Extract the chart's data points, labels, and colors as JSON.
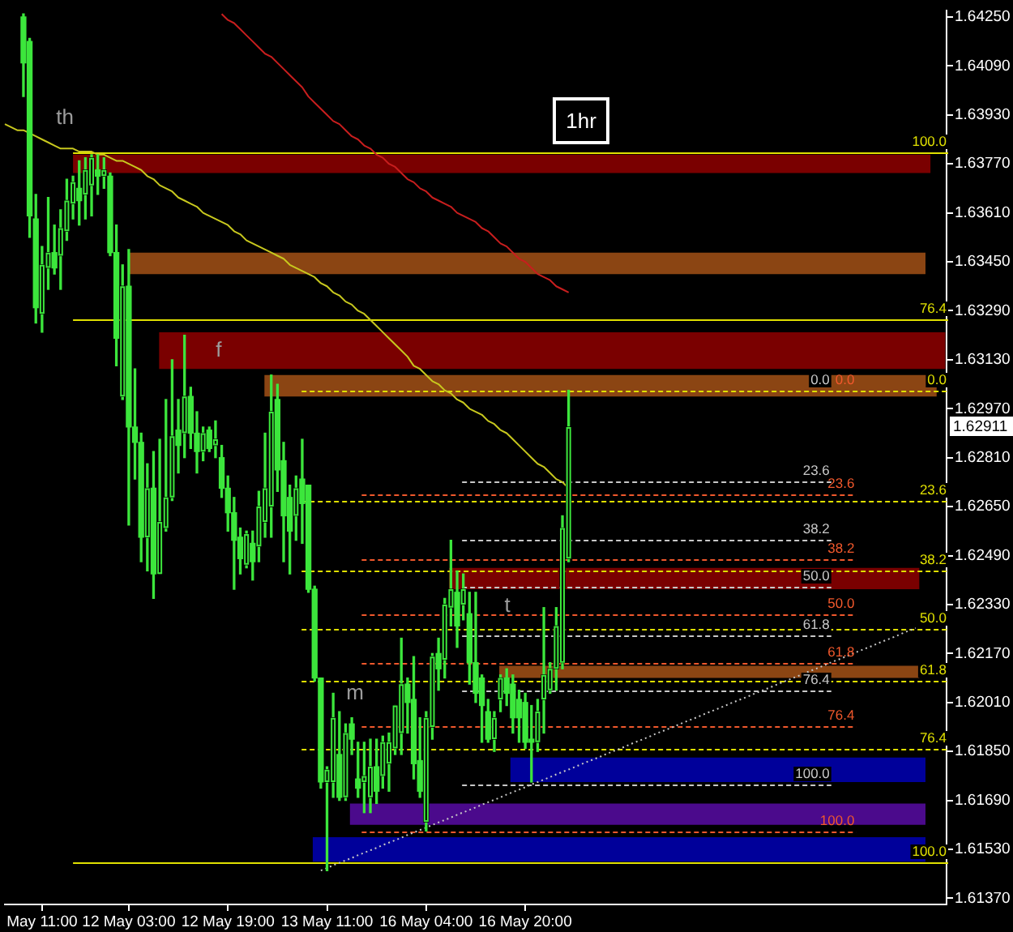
{
  "chart_data": {
    "type": "candlestick",
    "title": "1hr",
    "color": "#3ce63c",
    "categories": [
      null,
      null,
      null,
      null,
      null,
      null,
      "May 11:00",
      null,
      null,
      null,
      null,
      null,
      null,
      null,
      null,
      null,
      null,
      null,
      null,
      null,
      "12 May 03:00",
      null,
      null,
      null,
      null,
      null,
      null,
      null,
      null,
      null,
      null,
      null,
      null,
      null,
      null,
      null,
      "12 May 19:00",
      null,
      null,
      null,
      null,
      null,
      null,
      null,
      null,
      null,
      null,
      null,
      null,
      null,
      null,
      null,
      "13 May 11:00",
      null,
      null,
      null,
      null,
      null,
      null,
      null,
      null,
      null,
      null,
      null,
      null,
      null,
      null,
      null,
      "16 May 04:00",
      null,
      null,
      null,
      null,
      null,
      null,
      null,
      null,
      null,
      null,
      null,
      null,
      null,
      null,
      null,
      "16 May 20:00",
      null,
      null,
      null,
      null,
      null,
      null,
      null,
      null,
      null,
      null,
      null,
      null,
      null,
      null,
      null,
      null,
      null,
      null,
      null,
      null,
      null,
      null,
      null,
      null,
      null,
      null,
      null,
      null,
      null,
      null,
      null,
      null,
      null,
      null,
      null,
      null,
      null,
      null,
      null,
      null,
      null,
      null,
      null,
      null,
      null,
      null,
      null,
      null,
      null,
      null,
      null,
      null,
      null,
      null,
      null,
      null,
      null,
      null,
      null,
      null,
      null,
      null,
      null,
      null,
      null,
      null,
      null,
      null
    ],
    "ohlc": [
      null,
      null,
      null,
      [
        1.6425,
        1.6426,
        1.6399,
        1.641
      ],
      [
        1.6417,
        1.6418,
        1.6353,
        1.636
      ],
      [
        1.6359,
        1.6367,
        1.6325,
        1.633
      ],
      [
        1.6328,
        1.635,
        1.6322,
        1.6344
      ],
      [
        1.6343,
        1.6366,
        1.6336,
        1.6348
      ],
      [
        1.6348,
        1.6357,
        1.6341,
        1.6343
      ],
      [
        1.6347,
        1.6362,
        1.6336,
        1.6356
      ],
      [
        1.6355,
        1.6372,
        1.6352,
        1.6365
      ],
      [
        1.6364,
        1.6373,
        1.6359,
        1.6371
      ],
      [
        1.6369,
        1.6378,
        1.6357,
        1.6365
      ],
      [
        1.6367,
        1.6379,
        1.6359,
        1.6375
      ],
      [
        1.637,
        1.638,
        1.636,
        1.6379
      ],
      [
        1.6375,
        1.638,
        1.6367,
        1.6373
      ],
      [
        1.6373,
        1.6379,
        1.6369,
        1.6375
      ],
      [
        1.6373,
        1.6374,
        1.6347,
        1.6348
      ],
      [
        1.6348,
        1.6357,
        1.6311,
        1.632
      ],
      [
        1.6301,
        1.6344,
        1.63,
        1.6337
      ],
      [
        1.6337,
        1.6349,
        1.6259,
        1.6291
      ],
      [
        1.6291,
        1.631,
        1.6274,
        1.6286
      ],
      [
        1.6286,
        1.6289,
        1.6247,
        1.6255
      ],
      [
        1.6255,
        1.6279,
        1.6244,
        1.6271
      ],
      [
        1.6271,
        1.6283,
        1.6235,
        1.6243
      ],
      [
        1.6243,
        1.6287,
        1.6243,
        1.626
      ],
      [
        1.6258,
        1.63,
        1.6257,
        1.6268
      ],
      [
        1.6268,
        1.6313,
        1.6267,
        1.6288
      ],
      [
        1.629,
        1.63,
        1.6276,
        1.6285
      ],
      [
        1.6289,
        1.6321,
        1.6281,
        1.6301
      ],
      [
        1.6301,
        1.6304,
        1.6284,
        1.6289
      ],
      [
        1.6289,
        1.6296,
        1.6276,
        1.6283
      ],
      [
        1.6283,
        1.6291,
        1.628,
        1.6289
      ],
      [
        1.629,
        1.6291,
        1.6283,
        1.6284
      ],
      [
        1.6285,
        1.6293,
        1.6281,
        1.6287
      ],
      [
        1.6281,
        1.6285,
        1.6268,
        1.6271
      ],
      [
        1.6271,
        1.6275,
        1.6257,
        1.6263
      ],
      [
        1.6263,
        1.6268,
        1.6238,
        1.6254
      ],
      [
        1.6255,
        1.6258,
        1.6243,
        1.6248
      ],
      [
        1.6246,
        1.6257,
        1.6245,
        1.6256
      ],
      [
        1.6253,
        1.6257,
        1.6241,
        1.6247
      ],
      [
        1.6252,
        1.627,
        1.6247,
        1.6265
      ],
      [
        1.626,
        1.6289,
        1.6255,
        1.6271
      ],
      [
        1.6265,
        1.6308,
        1.6255,
        1.6296
      ],
      [
        1.63,
        1.6305,
        1.627,
        1.6277
      ],
      [
        1.628,
        1.6286,
        1.6247,
        1.6262
      ],
      [
        1.6268,
        1.6272,
        1.6243,
        1.6257
      ],
      [
        1.6262,
        1.6275,
        1.6254,
        1.6271
      ],
      [
        1.6274,
        1.6287,
        1.6253,
        1.6266
      ],
      [
        1.6272,
        1.6272,
        1.6237,
        1.6238
      ],
      [
        1.6238,
        1.6239,
        1.6208,
        1.6209
      ],
      [
        1.6209,
        1.6209,
        1.6173,
        1.6175
      ],
      [
        1.6175,
        1.618,
        1.6146,
        1.6179
      ],
      [
        1.6175,
        1.6204,
        1.617,
        1.6196
      ],
      [
        1.6184,
        1.6198,
        1.6169,
        1.617
      ],
      [
        1.617,
        1.6194,
        1.6169,
        1.6191
      ],
      [
        1.6194,
        1.6196,
        1.6184,
        1.6189
      ],
      [
        1.6176,
        1.6188,
        1.617,
        1.6173
      ],
      [
        1.6175,
        1.6188,
        1.6165,
        1.6177
      ],
      [
        1.617,
        1.6189,
        1.6165,
        1.618
      ],
      [
        1.618,
        1.6189,
        1.6168,
        1.6172
      ],
      [
        1.6177,
        1.619,
        1.6173,
        1.6188
      ],
      [
        1.6181,
        1.6191,
        1.6172,
        1.6188
      ],
      [
        1.6186,
        1.62,
        1.6184,
        1.62
      ],
      [
        1.6191,
        1.6222,
        1.6184,
        1.6207
      ],
      [
        1.6207,
        1.6209,
        1.6191,
        1.6201
      ],
      [
        1.6202,
        1.6216,
        1.6176,
        1.6181
      ],
      [
        1.6182,
        1.6196,
        1.617,
        1.6172
      ],
      [
        1.6162,
        1.6198,
        1.6159,
        1.6196
      ],
      [
        1.6193,
        1.6217,
        1.6189,
        1.6216
      ],
      [
        1.6217,
        1.6222,
        1.6205,
        1.6212
      ],
      [
        1.6215,
        1.6235,
        1.6209,
        1.6233
      ],
      [
        1.6232,
        1.6254,
        1.6226,
        1.6238
      ],
      [
        1.6237,
        1.6244,
        1.6219,
        1.6226
      ],
      [
        1.6233,
        1.6243,
        1.6228,
        1.6238
      ],
      [
        1.623,
        1.6237,
        1.6207,
        1.6214
      ],
      [
        1.6214,
        1.6237,
        1.6201,
        1.6204
      ],
      [
        1.6209,
        1.621,
        1.6188,
        1.62
      ],
      [
        1.6198,
        1.6202,
        1.6188,
        1.6189
      ],
      [
        1.6189,
        1.6198,
        1.6185,
        1.6196
      ],
      [
        1.6202,
        1.621,
        1.6198,
        1.6209
      ],
      [
        1.6209,
        1.6212,
        1.62,
        1.6204
      ],
      [
        1.6207,
        1.621,
        1.6191,
        1.6196
      ],
      [
        1.6202,
        1.6205,
        1.6188,
        1.6196
      ],
      [
        1.6201,
        1.6204,
        1.6186,
        1.6188
      ],
      [
        1.6189,
        1.62,
        1.6175,
        1.6188
      ],
      [
        1.6188,
        1.6202,
        1.6185,
        1.6198
      ],
      [
        1.6202,
        1.6232,
        1.6191,
        1.621
      ],
      [
        1.6205,
        1.6214,
        1.6204,
        1.6212
      ],
      [
        1.6212,
        1.6232,
        1.6205,
        1.6226
      ],
      [
        1.6214,
        1.6262,
        1.6212,
        1.6258
      ],
      [
        1.6248,
        1.6303,
        1.6247,
        1.6291
      ],
      null,
      null,
      null,
      null,
      null,
      null,
      null,
      null,
      null,
      null,
      null,
      null,
      null,
      null,
      null,
      null,
      null,
      null,
      null,
      null,
      null,
      null,
      null,
      null,
      null,
      null,
      null,
      null,
      null,
      null,
      null,
      null,
      null,
      null,
      null,
      null,
      null,
      null,
      null,
      null,
      null,
      null,
      null,
      null,
      null,
      null,
      null,
      null,
      null,
      null,
      null,
      null,
      null,
      null,
      null,
      null,
      null,
      null,
      null,
      null,
      null
    ],
    "colors": [
      null,
      null,
      null,
      "#3ce63c",
      "#3ce63c",
      "#3ce63c",
      "#000000",
      "#000000",
      "#3ce63c",
      "#000000",
      "#000000",
      "#000000",
      "#3ce63c",
      "#000000",
      "#000000",
      "#3ce63c",
      "#000000",
      "#3ce63c",
      "#3ce63c",
      "#000000",
      "#3ce63c",
      "#3ce63c",
      "#3ce63c",
      "#000000",
      "#3ce63c",
      "#000000",
      "#000000",
      "#000000",
      "#3ce63c",
      "#000000",
      "#3ce63c",
      "#3ce63c",
      "#000000",
      "#3ce63c",
      "#000000",
      "#3ce63c",
      "#3ce63c",
      "#3ce63c",
      "#3ce63c",
      "#000000",
      "#3ce63c",
      "#000000",
      "#000000",
      "#000000",
      "#3ce63c",
      "#3ce63c",
      "#3ce63c",
      "#000000",
      "#3ce63c",
      "#3ce63c",
      "#3ce63c",
      "#3ce63c",
      "#000000",
      "#000000",
      "#3ce63c",
      "#000000",
      "#3ce63c",
      "#3ce63c",
      "#000000",
      "#000000",
      "#3ce63c",
      "#000000",
      "#000000",
      "#000000",
      "#000000",
      "#3ce63c",
      "#3ce63c",
      "#3ce63c",
      "#000000",
      "#000000",
      "#3ce63c",
      "#000000",
      "#000000",
      "#3ce63c",
      "#000000",
      "#3ce63c",
      "#3ce63c",
      "#3ce63c",
      "#3ce63c",
      "#000000",
      "#000000",
      "#3ce63c",
      "#3ce63c",
      "#3ce63c",
      "#3ce63c",
      "#3ce63c",
      "#000000",
      "#000000",
      "#000000",
      "#000000",
      "#000000",
      "#000000",
      null,
      null,
      null,
      null,
      null,
      null,
      null,
      null,
      null,
      null,
      null,
      null,
      null,
      null,
      null,
      null,
      null,
      null,
      null,
      null,
      null,
      null,
      null,
      null,
      null,
      null,
      null,
      null,
      null,
      null,
      null,
      null,
      null,
      null,
      null,
      null,
      null,
      null,
      null,
      null,
      null,
      null,
      null,
      null,
      null,
      null,
      null,
      null,
      null,
      null,
      null,
      null,
      null,
      null,
      null,
      null,
      null,
      null,
      null,
      null,
      null
    ],
    "series": [
      {
        "type": "line",
        "color": "#c8c81e",
        "values": [
          1.639,
          1.6389,
          1.6388,
          1.6388,
          1.6387,
          1.6386,
          1.6385,
          1.6384,
          1.6383,
          1.6382,
          1.6382,
          1.6382,
          1.6381,
          1.6381,
          1.6381,
          1.638,
          1.638,
          1.6379,
          1.6378,
          1.6378,
          1.6377,
          1.6376,
          1.6375,
          1.6373,
          1.6372,
          1.637,
          1.6369,
          1.6368,
          1.6366,
          1.6365,
          1.6364,
          1.6363,
          1.6361,
          1.636,
          1.6359,
          1.6358,
          1.6357,
          1.6355,
          1.6354,
          1.6352,
          1.6351,
          1.635,
          1.6349,
          1.6348,
          1.6347,
          1.6346,
          1.6344,
          1.6343,
          1.6342,
          1.6341,
          1.634,
          1.6338,
          1.6337,
          1.6335,
          1.6334,
          1.6332,
          1.6331,
          1.6329,
          1.6328,
          1.6326,
          1.6324,
          1.6322,
          1.632,
          1.6318,
          1.6316,
          1.6314,
          1.6311,
          1.631,
          1.6308,
          1.6306,
          1.6305,
          1.6303,
          1.6302,
          1.63,
          1.6299,
          1.6297,
          1.6296,
          1.6295,
          1.6293,
          1.6292,
          1.629,
          1.6289,
          1.6287,
          1.6285,
          1.6283,
          1.6281,
          1.6279,
          1.6278,
          1.6276,
          1.6274,
          1.6273,
          1.6271,
          null,
          null,
          null,
          null,
          null,
          null,
          null,
          null,
          null,
          null,
          null,
          null,
          null,
          null,
          null,
          null,
          null,
          null,
          null,
          null,
          null,
          null,
          null,
          null,
          null,
          null,
          null,
          null,
          null,
          null,
          null,
          null,
          null,
          null,
          null,
          null,
          null,
          null,
          null,
          null,
          null,
          null,
          null,
          null,
          null,
          null,
          null,
          null,
          null,
          null,
          null,
          null,
          null,
          null,
          null,
          null,
          null,
          null,
          null,
          null,
          null
        ]
      },
      {
        "type": "line",
        "color": "#c81e1e",
        "values": [
          null,
          null,
          null,
          null,
          null,
          null,
          null,
          null,
          null,
          null,
          null,
          null,
          null,
          null,
          null,
          null,
          null,
          null,
          null,
          null,
          null,
          null,
          null,
          null,
          null,
          null,
          null,
          null,
          null,
          null,
          null,
          null,
          null,
          null,
          null,
          1.6426,
          1.6424,
          1.6423,
          1.6421,
          1.6419,
          1.6417,
          1.6415,
          1.6413,
          1.6412,
          1.641,
          1.6408,
          1.6406,
          1.6404,
          1.6402,
          1.6399,
          1.6397,
          1.6395,
          1.6393,
          1.6391,
          1.639,
          1.6388,
          1.6386,
          1.6385,
          1.6383,
          1.6382,
          1.638,
          1.6379,
          1.6377,
          1.6376,
          1.6374,
          1.6372,
          1.6371,
          1.6369,
          1.6368,
          1.6366,
          1.6365,
          1.6364,
          1.6363,
          1.6361,
          1.636,
          1.6359,
          1.6358,
          1.6356,
          1.6355,
          1.6353,
          1.6351,
          1.635,
          1.6348,
          1.6346,
          1.6345,
          1.6343,
          1.6341,
          1.634,
          1.6339,
          1.6337,
          1.6336,
          1.6335,
          null,
          null,
          null,
          null,
          null,
          null,
          null,
          null,
          null,
          null,
          null,
          null,
          null,
          null,
          null,
          null,
          null,
          null,
          null,
          null,
          null,
          null,
          null,
          null,
          null,
          null,
          null,
          null,
          null,
          null,
          null,
          null,
          null,
          null,
          null,
          null,
          null,
          null,
          null,
          null,
          null,
          null,
          null,
          null,
          null,
          null,
          null,
          null,
          null,
          null,
          null,
          null,
          null,
          null,
          null,
          null,
          null,
          null,
          null,
          null,
          null
        ]
      },
      {
        "type": "line",
        "color": "#c8c8c8",
        "line_style": "dotted",
        "values": [
          null,
          null,
          null,
          null,
          null,
          null,
          null,
          null,
          null,
          null,
          null,
          null,
          null,
          null,
          null,
          null,
          null,
          null,
          null,
          null,
          null,
          null,
          null,
          null,
          null,
          null,
          null,
          null,
          null,
          null,
          null,
          null,
          null,
          null,
          null,
          null,
          null,
          null,
          null,
          null,
          null,
          null,
          null,
          null,
          null,
          null,
          null,
          null,
          null,
          null,
          null,
          1.61461,
          1.61469,
          1.61478,
          1.61486,
          1.61494,
          1.61502,
          1.61511,
          1.61519,
          1.61527,
          1.61535,
          1.61544,
          1.61552,
          1.6156,
          1.61568,
          1.61577,
          1.61585,
          1.61593,
          1.61601,
          1.6161,
          1.61618,
          1.61626,
          1.61634,
          1.61643,
          1.61651,
          1.61659,
          1.61667,
          1.61676,
          1.61684,
          1.61692,
          1.617,
          1.61709,
          1.61717,
          1.61725,
          1.61733,
          1.61742,
          1.6175,
          1.61758,
          1.61766,
          1.61775,
          1.61783,
          1.61791,
          1.61799,
          1.61808,
          1.61816,
          1.61824,
          1.61832,
          1.61841,
          1.61849,
          1.61857,
          1.61865,
          1.61874,
          1.61882,
          1.6189,
          1.61898,
          1.61907,
          1.61915,
          1.61923,
          1.61931,
          1.6194,
          1.61948,
          1.61956,
          1.61964,
          1.61973,
          1.61981,
          1.61989,
          1.61997,
          1.62006,
          1.62014,
          1.62022,
          1.6203,
          1.62039,
          1.62047,
          1.62055,
          1.62063,
          1.62072,
          1.6208,
          1.62088,
          1.62096,
          1.62105,
          1.62113,
          1.62121,
          1.62129,
          1.62138,
          1.62146,
          1.62154,
          1.62162,
          1.62171,
          1.62179,
          1.62187,
          1.62195,
          1.62204,
          1.62212,
          1.6222,
          1.62228,
          1.62237,
          1.62245,
          1.62253,
          null,
          null,
          null,
          null,
          null
        ]
      }
    ],
    "ylim": [
      1.6135,
      1.6427
    ],
    "yticks": [
      {
        "value": 1.6137,
        "label": "1.61370"
      },
      {
        "value": 1.6153,
        "label": "1.61530"
      },
      {
        "value": 1.6169,
        "label": "1.61690"
      },
      {
        "value": 1.6185,
        "label": "1.61850"
      },
      {
        "value": 1.6201,
        "label": "1.62010"
      },
      {
        "value": 1.6217,
        "label": "1.62170"
      },
      {
        "value": 1.6233,
        "label": "1.62330"
      },
      {
        "value": 1.6249,
        "label": "1.62490"
      },
      {
        "value": 1.6265,
        "label": "1.62650"
      },
      {
        "value": 1.6281,
        "label": "1.62810"
      },
      {
        "value": 1.6297,
        "label": "1.62970"
      },
      {
        "value": 1.6313,
        "label": "1.63130"
      },
      {
        "value": 1.6329,
        "label": "1.63290"
      },
      {
        "value": 1.6345,
        "label": "1.63450"
      },
      {
        "value": 1.6361,
        "label": "1.63610"
      },
      {
        "value": 1.6377,
        "label": "1.63770"
      },
      {
        "value": 1.6393,
        "label": "1.63930"
      },
      {
        "value": 1.6409,
        "label": "1.64090"
      },
      {
        "value": 1.6425,
        "label": "1.64250"
      }
    ],
    "bands": [
      {
        "axis": "y",
        "from": 1.6374,
        "to": 1.638,
        "color": "#7a0000"
      },
      {
        "axis": "y",
        "from": 1.6341,
        "to": 1.6348,
        "color": "#8b4513"
      },
      {
        "axis": "y",
        "from": 1.631,
        "to": 1.6322,
        "color": "#7a0000",
        "label": "f"
      },
      {
        "axis": "y",
        "from": 1.6301,
        "to": 1.6308,
        "color": "#8b4513"
      },
      {
        "axis": "y",
        "from": 1.6238,
        "to": 1.6245,
        "color": "#7a0000"
      },
      {
        "axis": "y",
        "from": 1.6209,
        "to": 1.6213,
        "color": "#8b4513"
      },
      {
        "axis": "y",
        "from": 1.6175,
        "to": 1.6183,
        "color": "#00009a"
      },
      {
        "axis": "y",
        "from": 1.6161,
        "to": 1.6168,
        "color": "#4b0a8c"
      },
      {
        "axis": "y",
        "from": 1.6149,
        "to": 1.6157,
        "color": "#00009a"
      }
    ],
    "ref_lines": [
      {
        "axis": "y",
        "value": 1.6381,
        "color": "#e0e000",
        "line_style": "solid"
      },
      {
        "axis": "y",
        "value": 1.6326,
        "color": "#e0e000",
        "line_style": "solid"
      },
      {
        "axis": "y",
        "value": 1.6149,
        "color": "#e0e000",
        "line_style": "solid"
      },
      {
        "axis": "y",
        "value": 1.6303,
        "color": "#e0e000",
        "line_style": "dashed"
      },
      {
        "axis": "y",
        "value": 1.6267,
        "color": "#e0e000",
        "line_style": "dashed"
      },
      {
        "axis": "y",
        "value": 1.6244,
        "color": "#e0e000",
        "line_style": "dashed"
      },
      {
        "axis": "y",
        "value": 1.6225,
        "color": "#e0e000",
        "line_style": "dashed"
      },
      {
        "axis": "y",
        "value": 1.6208,
        "color": "#e0e000",
        "line_style": "dashed"
      },
      {
        "axis": "y",
        "value": 1.6186,
        "color": "#e0e000",
        "line_style": "dashed"
      },
      {
        "axis": "y",
        "value": 1.6269,
        "color": "#f0582c",
        "line_style": "dashed"
      },
      {
        "axis": "y",
        "value": 1.6248,
        "color": "#f0582c",
        "line_style": "dashed"
      },
      {
        "axis": "y",
        "value": 1.623,
        "color": "#f0582c",
        "line_style": "dashed"
      },
      {
        "axis": "y",
        "value": 1.6214,
        "color": "#f0582c",
        "line_style": "dashed"
      },
      {
        "axis": "y",
        "value": 1.6193,
        "color": "#f0582c",
        "line_style": "dashed"
      },
      {
        "axis": "y",
        "value": 1.6159,
        "color": "#f0582c",
        "line_style": "dashed"
      },
      {
        "axis": "y",
        "value": 1.6273,
        "color": "#c8c8c8",
        "line_style": "dashed"
      },
      {
        "axis": "y",
        "value": 1.6254,
        "color": "#c8c8c8",
        "line_style": "dashed"
      },
      {
        "axis": "y",
        "value": 1.6239,
        "color": "#c8c8c8",
        "line_style": "dashed"
      },
      {
        "axis": "y",
        "value": 1.6223,
        "color": "#c8c8c8",
        "line_style": "dashed"
      },
      {
        "axis": "y",
        "value": 1.6205,
        "color": "#c8c8c8",
        "line_style": "dashed"
      },
      {
        "axis": "y",
        "value": 1.6174,
        "color": "#c8c8c8",
        "line_style": "dashed"
      }
    ],
    "annotations": [
      "th",
      "t",
      "m",
      {
        "text": "100.0",
        "y": 1.6381
      },
      {
        "text": "76.4",
        "y": 1.6326
      },
      {
        "text": "0.0",
        "y": 1.6303
      },
      {
        "text": "23.6",
        "y": 1.6267
      },
      {
        "text": "38.2",
        "y": 1.6244
      },
      {
        "text": "50.0",
        "y": 1.6225
      },
      {
        "text": "61.8",
        "y": 1.6208
      },
      {
        "text": "76.4",
        "y": 1.6186
      },
      {
        "text": "100.0",
        "y": 1.6149
      },
      {
        "text": "0.0",
        "y": 1.6303
      },
      {
        "text": "23.6",
        "y": 1.6269
      },
      {
        "text": "38.2",
        "y": 1.6248
      },
      {
        "text": "50.0",
        "y": 1.623
      },
      {
        "text": "61.8",
        "y": 1.6214
      },
      {
        "text": "76.4",
        "y": 1.6193
      },
      {
        "text": "100.0",
        "y": 1.6159
      },
      {
        "text": "0.0",
        "y": 1.6303
      },
      {
        "text": "23.6",
        "y": 1.6273
      },
      {
        "text": "38.2",
        "y": 1.6254
      },
      {
        "text": "50.0",
        "y": 1.6239
      },
      {
        "text": "61.8",
        "y": 1.6223
      },
      {
        "text": "76.4",
        "y": 1.6205
      },
      {
        "text": "100.0",
        "y": 1.6174
      },
      {
        "text": "1.62911",
        "y": 1.62911
      }
    ]
  }
}
